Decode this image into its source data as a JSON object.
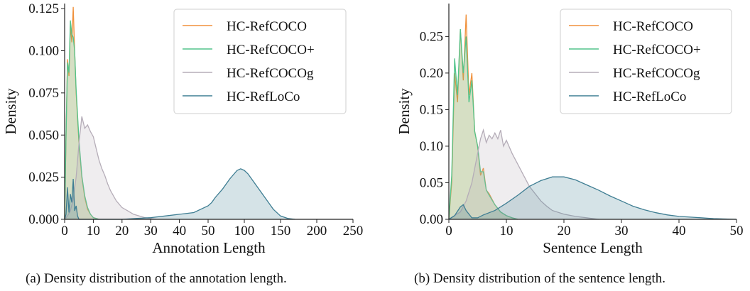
{
  "colors": {
    "HC-RefCOCO": "#f0913c",
    "HC-RefCOCO+": "#52c48b",
    "HC-RefCOCOg": "#b5adb8",
    "HC-RefLoCo": "#3f7e93"
  },
  "chart_data": [
    {
      "type": "area",
      "title": "",
      "xlabel": "Annotation Length",
      "ylabel": "Density",
      "xlim": [
        0,
        250
      ],
      "ylim": [
        0,
        0.128
      ],
      "xticks": [
        0,
        10,
        20,
        30,
        40,
        50,
        100,
        150,
        200,
        250
      ],
      "xtick_labels": [
        "0",
        "10",
        "20",
        "30",
        "40",
        "50",
        "100",
        "150",
        "200",
        "250"
      ],
      "x_scale": "piecewise: 0-50 expanded, 50-250 compressed",
      "yticks": [
        0,
        0.025,
        0.05,
        0.075,
        0.1,
        0.125
      ],
      "ytick_labels": [
        "0.000",
        "0.025",
        "0.050",
        "0.075",
        "0.100",
        "0.125"
      ],
      "grid": false,
      "legend_position": "top-right",
      "series": [
        {
          "name": "HC-RefCOCO",
          "x": [
            0,
            0.5,
            1,
            1.5,
            2,
            2.5,
            3,
            3.5,
            4,
            5,
            6,
            7,
            8,
            9,
            10,
            12
          ],
          "y": [
            0,
            0.05,
            0.095,
            0.085,
            0.115,
            0.105,
            0.126,
            0.1,
            0.075,
            0.045,
            0.025,
            0.013,
            0.006,
            0.003,
            0.001,
            0
          ]
        },
        {
          "name": "HC-RefCOCO+",
          "x": [
            0,
            0.5,
            1,
            1.5,
            2,
            2.5,
            3,
            3.5,
            4,
            5,
            6,
            7,
            8,
            9,
            10,
            12
          ],
          "y": [
            0,
            0.05,
            0.093,
            0.087,
            0.118,
            0.11,
            0.108,
            0.1,
            0.077,
            0.047,
            0.026,
            0.014,
            0.007,
            0.003,
            0.001,
            0
          ]
        },
        {
          "name": "HC-RefCOCOg",
          "x": [
            0,
            1,
            2,
            3,
            4,
            5,
            6,
            7,
            8,
            9,
            10,
            11,
            12,
            13,
            14,
            15,
            16,
            18,
            20,
            22,
            24,
            26,
            28,
            30,
            32
          ],
          "y": [
            0,
            0.002,
            0.005,
            0.012,
            0.025,
            0.045,
            0.061,
            0.054,
            0.056,
            0.052,
            0.049,
            0.042,
            0.035,
            0.03,
            0.026,
            0.021,
            0.017,
            0.011,
            0.007,
            0.005,
            0.003,
            0.002,
            0.001,
            0.0005,
            0
          ]
        },
        {
          "name": "HC-RefLoCo",
          "x": [
            0,
            0.5,
            1,
            1.5,
            2,
            2.5,
            3,
            3.5,
            4,
            4.5,
            5,
            6,
            8,
            10,
            15,
            20,
            25,
            30,
            35,
            40,
            45,
            50,
            55,
            60,
            70,
            80,
            90,
            95,
            100,
            105,
            110,
            120,
            130,
            140,
            150,
            160,
            170
          ],
          "y": [
            0,
            0.003,
            0.019,
            0.004,
            0.015,
            0.01,
            0.024,
            0.005,
            0.008,
            0.002,
            0.0,
            0,
            0,
            0,
            0,
            0,
            0.0005,
            0.001,
            0.002,
            0.003,
            0.004,
            0.008,
            0.01,
            0.013,
            0.018,
            0.024,
            0.029,
            0.03,
            0.029,
            0.027,
            0.024,
            0.018,
            0.012,
            0.006,
            0.002,
            0.0005,
            0
          ]
        }
      ]
    },
    {
      "type": "area",
      "title": "",
      "xlabel": "Sentence Length",
      "ylabel": "Density",
      "xlim": [
        0,
        50
      ],
      "ylim": [
        0,
        0.295
      ],
      "xticks": [
        0,
        10,
        20,
        30,
        40,
        50
      ],
      "xtick_labels": [
        "0",
        "10",
        "20",
        "30",
        "40",
        "50"
      ],
      "yticks": [
        0,
        0.05,
        0.1,
        0.15,
        0.2,
        0.25
      ],
      "ytick_labels": [
        "0.00",
        "0.05",
        "0.10",
        "0.15",
        "0.20",
        "0.25"
      ],
      "grid": false,
      "legend_position": "top-right",
      "series": [
        {
          "name": "HC-RefCOCO",
          "x": [
            0,
            0.5,
            1,
            1.5,
            2,
            2.5,
            3,
            3.5,
            4,
            4.5,
            5,
            5.5,
            6,
            6.5,
            7,
            8,
            9,
            10,
            11,
            12
          ],
          "y": [
            0,
            0.05,
            0.2,
            0.16,
            0.26,
            0.19,
            0.28,
            0.17,
            0.2,
            0.12,
            0.1,
            0.06,
            0.07,
            0.04,
            0.035,
            0.02,
            0.01,
            0.005,
            0.002,
            0
          ]
        },
        {
          "name": "HC-RefCOCO+",
          "x": [
            0,
            0.5,
            1,
            1.5,
            2,
            2.5,
            3,
            3.5,
            4,
            4.5,
            5,
            5.5,
            6,
            6.5,
            7,
            8,
            9,
            10,
            11,
            12
          ],
          "y": [
            0,
            0.06,
            0.22,
            0.17,
            0.26,
            0.2,
            0.25,
            0.16,
            0.19,
            0.12,
            0.1,
            0.065,
            0.065,
            0.04,
            0.033,
            0.02,
            0.01,
            0.005,
            0.002,
            0
          ]
        },
        {
          "name": "HC-RefCOCOg",
          "x": [
            0,
            1,
            2,
            3,
            4,
            5,
            5.5,
            6,
            6.5,
            7,
            7.5,
            8,
            8.5,
            9,
            9.5,
            10,
            11,
            12,
            13,
            14,
            15,
            16,
            17,
            18,
            20,
            22,
            24,
            26
          ],
          "y": [
            0,
            0.005,
            0.01,
            0.025,
            0.05,
            0.09,
            0.11,
            0.122,
            0.105,
            0.115,
            0.11,
            0.118,
            0.11,
            0.122,
            0.1,
            0.108,
            0.09,
            0.075,
            0.06,
            0.045,
            0.035,
            0.025,
            0.018,
            0.012,
            0.007,
            0.004,
            0.002,
            0
          ]
        },
        {
          "name": "HC-RefLoCo",
          "x": [
            0,
            1,
            2,
            2.5,
            3,
            4,
            5,
            6,
            8,
            10,
            12,
            14,
            16,
            18,
            20,
            22,
            24,
            26,
            28,
            30,
            32,
            34,
            36,
            38,
            40,
            42,
            44,
            46,
            48,
            50
          ],
          "y": [
            0,
            0.005,
            0.017,
            0.02,
            0.012,
            0.002,
            0.002,
            0.006,
            0.012,
            0.022,
            0.033,
            0.045,
            0.053,
            0.058,
            0.058,
            0.054,
            0.047,
            0.04,
            0.032,
            0.025,
            0.018,
            0.013,
            0.009,
            0.006,
            0.004,
            0.003,
            0.002,
            0.001,
            0.0005,
            0
          ]
        }
      ]
    }
  ],
  "captions": {
    "a": "(a) Density distribution of the annotation length.",
    "b": "(b) Density distribution of the sentence length."
  }
}
